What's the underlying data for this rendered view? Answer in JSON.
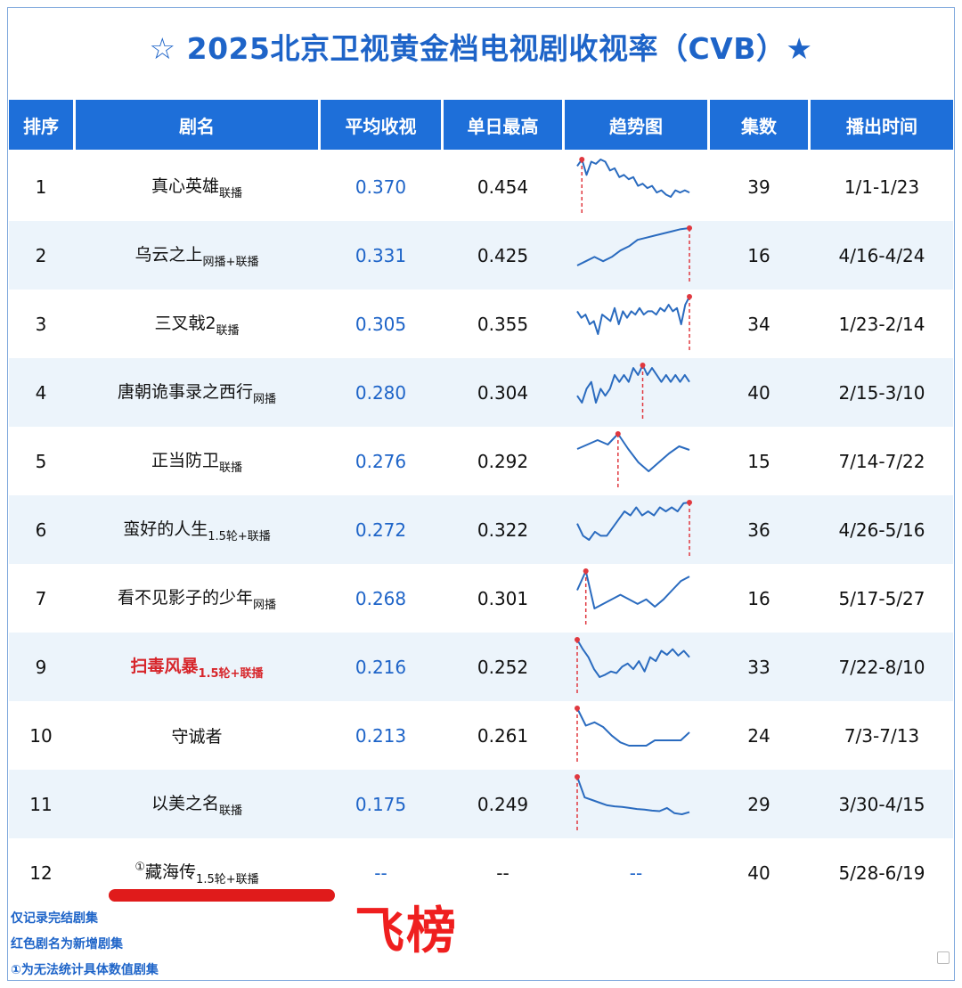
{
  "title": "☆ 2025北京卫视黄金档电视剧收视率（CVB）★",
  "headers": [
    "排序",
    "剧名",
    "平均收视",
    "单日最高",
    "趋势图",
    "集数",
    "播出时间"
  ],
  "colors": {
    "header_bg": "#1e6fd9",
    "accent": "#1e64c8",
    "new_show": "#d7262b",
    "trend_line": "#2a6bbf",
    "peak_marker": "#e0383f"
  },
  "rows": [
    {
      "rank": "1",
      "name": "真心英雄",
      "tag": "联播",
      "avg": "0.370",
      "max": "0.454",
      "episodes": "39",
      "dates": "1/1-1/23",
      "trend": [
        0.42,
        0.45,
        0.38,
        0.44,
        0.43,
        0.45,
        0.44,
        0.4,
        0.41,
        0.37,
        0.38,
        0.36,
        0.37,
        0.33,
        0.34,
        0.32,
        0.33,
        0.3,
        0.31,
        0.29,
        0.28,
        0.31,
        0.3,
        0.31,
        0.3
      ],
      "peak_index": 1
    },
    {
      "rank": "2",
      "name": "乌云之上",
      "tag": "网播+联播",
      "avg": "0.331",
      "max": "0.425",
      "episodes": "16",
      "dates": "4/16-4/24",
      "trend": [
        0.25,
        0.27,
        0.29,
        0.27,
        0.29,
        0.32,
        0.34,
        0.37,
        0.38,
        0.39,
        0.4,
        0.41,
        0.42,
        0.425
      ],
      "peak_index": 13
    },
    {
      "rank": "3",
      "name": "三叉戟2",
      "tag": "联播",
      "avg": "0.305",
      "max": "0.355",
      "episodes": "34",
      "dates": "1/23-2/14",
      "trend": [
        0.31,
        0.29,
        0.3,
        0.27,
        0.28,
        0.24,
        0.3,
        0.29,
        0.28,
        0.32,
        0.27,
        0.31,
        0.29,
        0.31,
        0.3,
        0.32,
        0.3,
        0.31,
        0.31,
        0.3,
        0.32,
        0.31,
        0.33,
        0.31,
        0.32,
        0.27,
        0.33,
        0.355
      ],
      "peak_index": 27
    },
    {
      "rank": "4",
      "name": "唐朝诡事录之西行",
      "tag": "网播",
      "avg": "0.280",
      "max": "0.304",
      "episodes": "40",
      "dates": "2/15-3/10",
      "trend": [
        0.26,
        0.25,
        0.27,
        0.28,
        0.25,
        0.27,
        0.26,
        0.27,
        0.29,
        0.28,
        0.29,
        0.28,
        0.3,
        0.29,
        0.304,
        0.29,
        0.3,
        0.29,
        0.28,
        0.29,
        0.28,
        0.29,
        0.28,
        0.29,
        0.28
      ],
      "peak_index": 14
    },
    {
      "rank": "5",
      "name": "正当防卫",
      "tag": "联播",
      "avg": "0.276",
      "max": "0.292",
      "episodes": "15",
      "dates": "7/14-7/22",
      "trend": [
        0.275,
        0.28,
        0.285,
        0.28,
        0.292,
        0.275,
        0.26,
        0.25,
        0.26,
        0.27,
        0.278,
        0.274
      ],
      "peak_index": 4
    },
    {
      "rank": "6",
      "name": "蛮好的人生",
      "tag": "1.5轮+联播",
      "avg": "0.272",
      "max": "0.322",
      "episodes": "36",
      "dates": "4/26-5/16",
      "trend": [
        0.27,
        0.24,
        0.23,
        0.25,
        0.24,
        0.24,
        0.26,
        0.28,
        0.3,
        0.29,
        0.31,
        0.29,
        0.3,
        0.29,
        0.31,
        0.3,
        0.31,
        0.3,
        0.32,
        0.322
      ],
      "peak_index": 19
    },
    {
      "rank": "7",
      "name": "看不见影子的少年",
      "tag": "网播",
      "avg": "0.268",
      "max": "0.301",
      "episodes": "16",
      "dates": "5/17-5/27",
      "trend": [
        0.28,
        0.301,
        0.26,
        0.265,
        0.27,
        0.275,
        0.27,
        0.265,
        0.27,
        0.262,
        0.27,
        0.28,
        0.29,
        0.295
      ],
      "peak_index": 1
    },
    {
      "rank": "9",
      "name": "扫毒风暴",
      "tag": "1.5轮+联播",
      "avg": "0.216",
      "max": "0.252",
      "episodes": "33",
      "dates": "7/22-8/10",
      "new": true,
      "trend": [
        0.252,
        0.24,
        0.23,
        0.215,
        0.205,
        0.208,
        0.212,
        0.21,
        0.218,
        0.222,
        0.215,
        0.225,
        0.212,
        0.23,
        0.225,
        0.238,
        0.233,
        0.24,
        0.232,
        0.238,
        0.23
      ],
      "peak_index": 0
    },
    {
      "rank": "10",
      "name": "守诚者",
      "tag": "",
      "avg": "0.213",
      "max": "0.261",
      "episodes": "24",
      "dates": "7/3-7/13",
      "trend": [
        0.261,
        0.235,
        0.24,
        0.233,
        0.22,
        0.21,
        0.205,
        0.205,
        0.205,
        0.213,
        0.213,
        0.213,
        0.213,
        0.225
      ],
      "peak_index": 0
    },
    {
      "rank": "11",
      "name": "以美之名",
      "tag": "联播",
      "avg": "0.175",
      "max": "0.249",
      "episodes": "29",
      "dates": "3/30-4/15",
      "trend": [
        0.249,
        0.21,
        0.205,
        0.2,
        0.195,
        0.193,
        0.192,
        0.19,
        0.188,
        0.187,
        0.185,
        0.184,
        0.19,
        0.18,
        0.178,
        0.182
      ],
      "peak_index": 0
    },
    {
      "rank": "12",
      "name": "藏海传",
      "tag": "1.5轮+联播",
      "prefix": "①",
      "avg": "--",
      "max": "--",
      "episodes": "40",
      "dates": "5/28-6/19",
      "trend_text": "--"
    }
  ],
  "footer": [
    "仅记录完结剧集",
    "红色剧名为新增剧集",
    "①为无法统计具体数值剧集"
  ],
  "stamp": "飞榜"
}
